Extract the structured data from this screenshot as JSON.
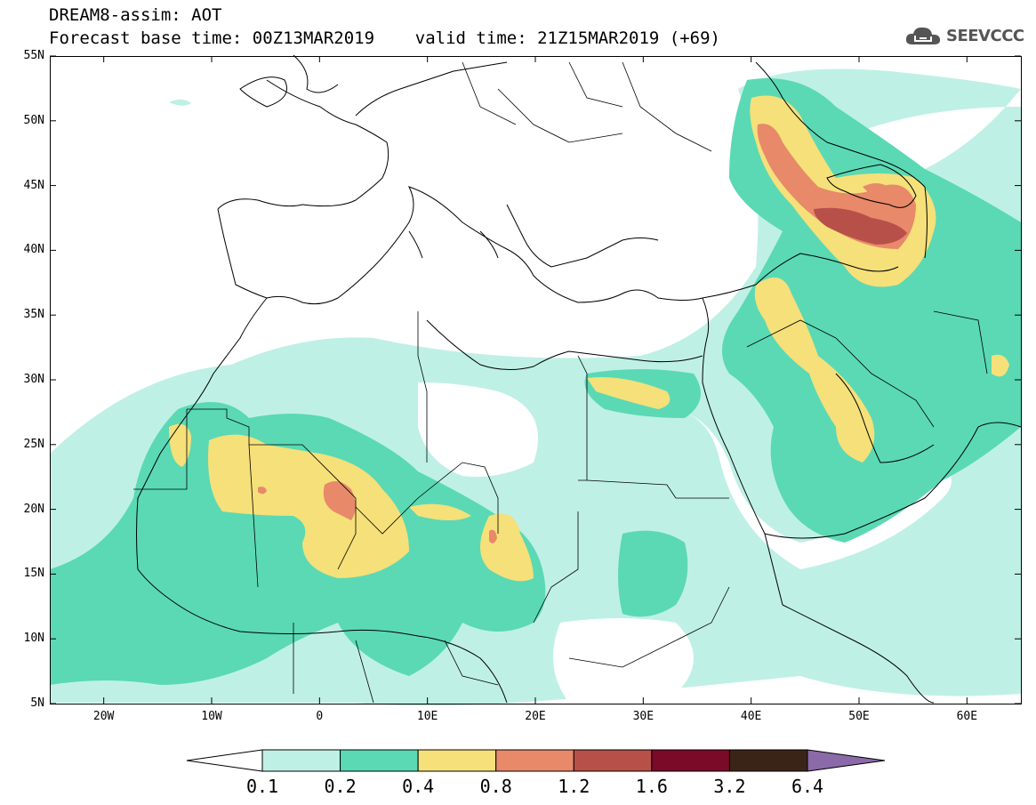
{
  "header": {
    "line1": "DREAM8-assim: AOT",
    "line2": "Forecast base time: 00Z13MAR2019    valid time: 21Z15MAR2019 (+69)"
  },
  "logo": {
    "text": "SEEVCCC",
    "icon": "cloud-icon",
    "color": "#555555"
  },
  "map": {
    "projection": "cylindrical",
    "lon_range": [
      -25,
      65
    ],
    "lat_range": [
      5,
      55
    ],
    "y_labels": [
      "55N",
      "50N",
      "45N",
      "40N",
      "35N",
      "30N",
      "25N",
      "20N",
      "15N",
      "10N",
      "5N"
    ],
    "x_labels": [
      "20W",
      "10W",
      "0",
      "10E",
      "20E",
      "30E",
      "40E",
      "50E",
      "60E"
    ]
  },
  "colorbar": {
    "labels": [
      "0.1",
      "0.2",
      "0.4",
      "0.8",
      "1.2",
      "1.6",
      "3.2",
      "6.4"
    ],
    "colors": [
      "#ffffff",
      "#bff0e6",
      "#5ad9b4",
      "#f5e07a",
      "#e8896a",
      "#b8504a",
      "#7a0a28",
      "#3a2418",
      "#8a6aa8"
    ]
  }
}
